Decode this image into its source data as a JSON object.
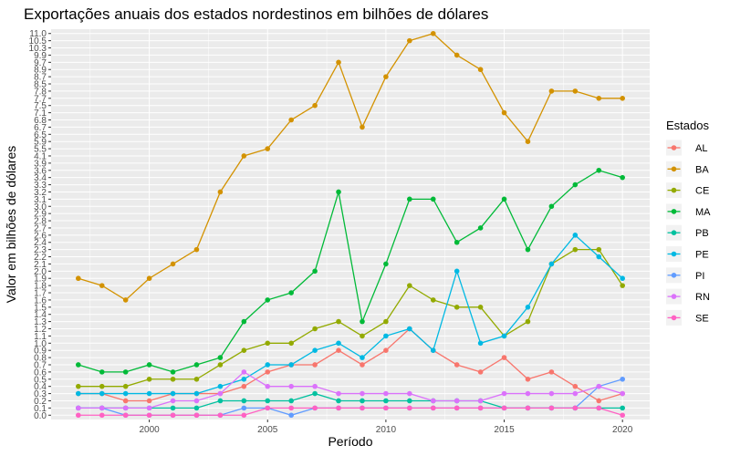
{
  "chart_data": {
    "type": "line",
    "title": "Exportações anuais dos estados nordestinos em bilhões de dólares",
    "xlabel": "Período",
    "ylabel": "Valor em bilhões de dólares",
    "x": [
      1997,
      1998,
      1999,
      2000,
      2001,
      2002,
      2003,
      2004,
      2005,
      2006,
      2007,
      2008,
      2009,
      2010,
      2011,
      2012,
      2013,
      2014,
      2015,
      2016,
      2017,
      2018,
      2019,
      2020
    ],
    "xticks": [
      "2000",
      "2005",
      "2010",
      "2015",
      "2020"
    ],
    "y_is_categorical": true,
    "yticks": [
      "0.0",
      "0.1",
      "0.2",
      "0.3",
      "0.4",
      "0.5",
      "0.6",
      "0.7",
      "0.8",
      "0.9",
      "1.0",
      "1.1",
      "1.2",
      "1.3",
      "1.4",
      "1.5",
      "1.6",
      "1.7",
      "1.8",
      "1.9",
      "2.0",
      "2.1",
      "2.2",
      "2.3",
      "2.4",
      "2.6",
      "2.7",
      "2.8",
      "2.9",
      "3.0",
      "3.1",
      "3.2",
      "3.3",
      "3.4",
      "3.6",
      "3.9",
      "4.1",
      "5.5",
      "5.9",
      "6.5",
      "6.7",
      "6.8",
      "7.1",
      "7.5",
      "7.7",
      "7.8",
      "8.5",
      "8.7",
      "8.9",
      "9.7",
      "9.9",
      "10.3",
      "10.5",
      "11.0"
    ],
    "legend_title": "Estados",
    "legend_position": "right",
    "grid": true,
    "series": [
      {
        "name": "AL",
        "color": "#F8766D",
        "values": [
          "0.3",
          "0.3",
          "0.2",
          "0.2",
          "0.3",
          "0.3",
          "0.3",
          "0.4",
          "0.6",
          "0.7",
          "0.7",
          "0.9",
          "0.7",
          "0.9",
          "1.2",
          "0.9",
          "0.7",
          "0.6",
          "0.8",
          "0.5",
          "0.6",
          "0.4",
          "0.2",
          "0.3"
        ]
      },
      {
        "name": "BA",
        "color": "#D39200",
        "values": [
          "1.9",
          "1.8",
          "1.6",
          "1.9",
          "2.1",
          "2.3",
          "3.2",
          "4.1",
          "5.5",
          "6.8",
          "7.5",
          "9.7",
          "6.7",
          "8.7",
          "10.5",
          "11.0",
          "9.9",
          "8.9",
          "7.1",
          "5.9",
          "7.8",
          "7.8",
          "7.7",
          "7.7"
        ]
      },
      {
        "name": "CE",
        "color": "#93AA00",
        "values": [
          "0.4",
          "0.4",
          "0.4",
          "0.5",
          "0.5",
          "0.5",
          "0.7",
          "0.9",
          "1.0",
          "1.0",
          "1.2",
          "1.3",
          "1.1",
          "1.3",
          "1.8",
          "1.6",
          "1.5",
          "1.5",
          "1.1",
          "1.3",
          "2.1",
          "2.3",
          "2.3",
          "1.8"
        ]
      },
      {
        "name": "MA",
        "color": "#00BA38",
        "values": [
          "0.7",
          "0.6",
          "0.6",
          "0.7",
          "0.6",
          "0.7",
          "0.8",
          "1.3",
          "1.6",
          "1.7",
          "2.0",
          "3.2",
          "1.3",
          "2.1",
          "3.1",
          "3.1",
          "2.4",
          "2.7",
          "3.1",
          "2.3",
          "3.0",
          "3.3",
          "3.6",
          "3.4"
        ]
      },
      {
        "name": "PB",
        "color": "#00C19F",
        "values": [
          "0.1",
          "0.1",
          "0.1",
          "0.1",
          "0.1",
          "0.1",
          "0.2",
          "0.2",
          "0.2",
          "0.2",
          "0.3",
          "0.2",
          "0.2",
          "0.2",
          "0.2",
          "0.2",
          "0.2",
          "0.2",
          "0.1",
          "0.1",
          "0.1",
          "0.1",
          "0.1",
          "0.1"
        ]
      },
      {
        "name": "PE",
        "color": "#00B9E3",
        "values": [
          "0.3",
          "0.3",
          "0.3",
          "0.3",
          "0.3",
          "0.3",
          "0.4",
          "0.5",
          "0.7",
          "0.7",
          "0.9",
          "1.0",
          "0.8",
          "1.1",
          "1.2",
          "0.9",
          "2.0",
          "1.0",
          "1.1",
          "1.5",
          "2.1",
          "2.6",
          "2.2",
          "1.9"
        ]
      },
      {
        "name": "PI",
        "color": "#619CFF",
        "values": [
          "0.1",
          "0.1",
          "0.0",
          "0.0",
          "0.0",
          "0.0",
          "0.0",
          "0.1",
          "0.1",
          "0.0",
          "0.1",
          "0.1",
          "0.1",
          "0.1",
          "0.1",
          "0.1",
          "0.1",
          "0.1",
          "0.1",
          "0.1",
          "0.1",
          "0.1",
          "0.4",
          "0.5"
        ]
      },
      {
        "name": "RN",
        "color": "#DB72FB",
        "values": [
          "0.1",
          "0.1",
          "0.1",
          "0.1",
          "0.2",
          "0.2",
          "0.3",
          "0.6",
          "0.4",
          "0.4",
          "0.4",
          "0.3",
          "0.3",
          "0.3",
          "0.3",
          "0.2",
          "0.2",
          "0.2",
          "0.3",
          "0.3",
          "0.3",
          "0.3",
          "0.4",
          "0.3"
        ]
      },
      {
        "name": "SE",
        "color": "#FF61C3",
        "values": [
          "0.0",
          "0.0",
          "0.0",
          "0.0",
          "0.0",
          "0.0",
          "0.0",
          "0.0",
          "0.1",
          "0.1",
          "0.1",
          "0.1",
          "0.1",
          "0.1",
          "0.1",
          "0.1",
          "0.1",
          "0.1",
          "0.1",
          "0.1",
          "0.1",
          "0.1",
          "0.1",
          "0.0"
        ]
      }
    ]
  }
}
